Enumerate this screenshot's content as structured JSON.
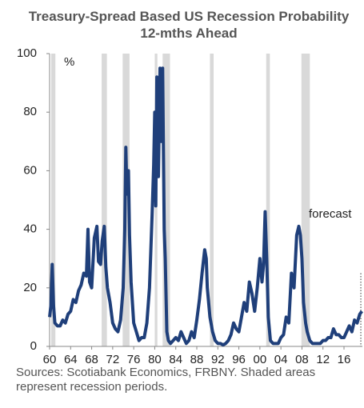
{
  "chart_data": {
    "type": "line",
    "title": "Treasury-Spread Based US Recession Probability 12-mths Ahead",
    "y_unit": "%",
    "annotation": "forecast",
    "forecast_x": 2019.2,
    "source": "Sources: Scotiabank Economics, FRBNY. Shaded areas represent recession periods.",
    "xlim": [
      1960,
      2019.5
    ],
    "xticks": [
      {
        "value": 1960,
        "label": "60"
      },
      {
        "value": 1964,
        "label": "64"
      },
      {
        "value": 1968,
        "label": "68"
      },
      {
        "value": 1972,
        "label": "72"
      },
      {
        "value": 1976,
        "label": "76"
      },
      {
        "value": 1980,
        "label": "80"
      },
      {
        "value": 1984,
        "label": "84"
      },
      {
        "value": 1988,
        "label": "88"
      },
      {
        "value": 1992,
        "label": "92"
      },
      {
        "value": 1996,
        "label": "96"
      },
      {
        "value": 2000,
        "label": "00"
      },
      {
        "value": 2004,
        "label": "04"
      },
      {
        "value": 2008,
        "label": "08"
      },
      {
        "value": 2012,
        "label": "12"
      },
      {
        "value": 2016,
        "label": "16"
      }
    ],
    "ylim": [
      0,
      100
    ],
    "yticks": [
      0,
      20,
      40,
      60,
      80,
      100
    ],
    "recession_color": "#d9d9d9",
    "recessions": [
      [
        1960.3,
        1961.1
      ],
      [
        1969.9,
        1970.9
      ],
      [
        1973.9,
        1975.2
      ],
      [
        1980.0,
        1980.5
      ],
      [
        1981.5,
        1982.9
      ],
      [
        1990.5,
        1991.2
      ],
      [
        2001.2,
        2001.9
      ],
      [
        2007.9,
        2009.5
      ]
    ],
    "x": [
      1960,
      1960.25,
      1960.5,
      1960.75,
      1961,
      1961.5,
      1962,
      1962.5,
      1963,
      1963.5,
      1964,
      1964.5,
      1965,
      1965.5,
      1966,
      1966.5,
      1967,
      1967.3,
      1967.6,
      1968,
      1968.5,
      1969,
      1969.3,
      1969.7,
      1970,
      1970.4,
      1970.7,
      1971,
      1971.5,
      1972,
      1972.5,
      1973,
      1973.5,
      1974,
      1974.3,
      1974.5,
      1974.7,
      1975,
      1975.2,
      1975.5,
      1976,
      1976.5,
      1977,
      1977.5,
      1978,
      1978.5,
      1979,
      1979.5,
      1979.8,
      1980,
      1980.2,
      1980.4,
      1980.7,
      1981,
      1981.2,
      1981.5,
      1981.8,
      1982,
      1982.3,
      1982.6,
      1983,
      1983.5,
      1984,
      1984.5,
      1985,
      1985.5,
      1986,
      1986.5,
      1987,
      1987.5,
      1988,
      1988.5,
      1989,
      1989.5,
      1989.8,
      1990,
      1990.5,
      1991,
      1991.5,
      1992,
      1992.5,
      1993,
      1993.5,
      1994,
      1994.5,
      1995,
      1995.5,
      1996,
      1996.5,
      1997,
      1997.5,
      1998,
      1998.5,
      1999,
      1999.5,
      2000,
      2000.4,
      2000.7,
      2001,
      2001.3,
      2001.6,
      2002,
      2002.5,
      2003,
      2003.5,
      2004,
      2004.5,
      2005,
      2005.5,
      2006,
      2006.5,
      2007,
      2007.4,
      2007.7,
      2008,
      2008.3,
      2008.7,
      2009,
      2009.5,
      2010,
      2010.5,
      2011,
      2011.5,
      2012,
      2012.5,
      2013,
      2013.5,
      2014,
      2014.5,
      2015,
      2015.5,
      2016,
      2016.5,
      2017,
      2017.5,
      2018,
      2018.5,
      2019,
      2019.4
    ],
    "series": [
      {
        "name": "Recession probability",
        "color": "#1f3f7a",
        "values": [
          10,
          14,
          28,
          14,
          8,
          7,
          7,
          9,
          8,
          11,
          12,
          16,
          15,
          19,
          21,
          25,
          24,
          40,
          22,
          20,
          37,
          41,
          29,
          28,
          36,
          41,
          27,
          20,
          15,
          8,
          6,
          5,
          9,
          20,
          40,
          68,
          52,
          60,
          38,
          22,
          8,
          5,
          2,
          3,
          3,
          8,
          20,
          45,
          62,
          80,
          48,
          92,
          58,
          95,
          70,
          95,
          40,
          30,
          5,
          2,
          1,
          2,
          3,
          2,
          5,
          3,
          1,
          2,
          5,
          3,
          9,
          16,
          25,
          33,
          30,
          20,
          10,
          5,
          2,
          1,
          1,
          0.5,
          1,
          2,
          4,
          8,
          6,
          5,
          10,
          15,
          12,
          22,
          18,
          12,
          20,
          30,
          22,
          28,
          46,
          30,
          10,
          2,
          1,
          1,
          1,
          3,
          4,
          10,
          8,
          25,
          20,
          38,
          41,
          38,
          30,
          15,
          8,
          5,
          2,
          1,
          1,
          1,
          1,
          2,
          2,
          3,
          3,
          6,
          4,
          4,
          3,
          3,
          5,
          7,
          5,
          9,
          8,
          11,
          12
        ]
      }
    ]
  }
}
